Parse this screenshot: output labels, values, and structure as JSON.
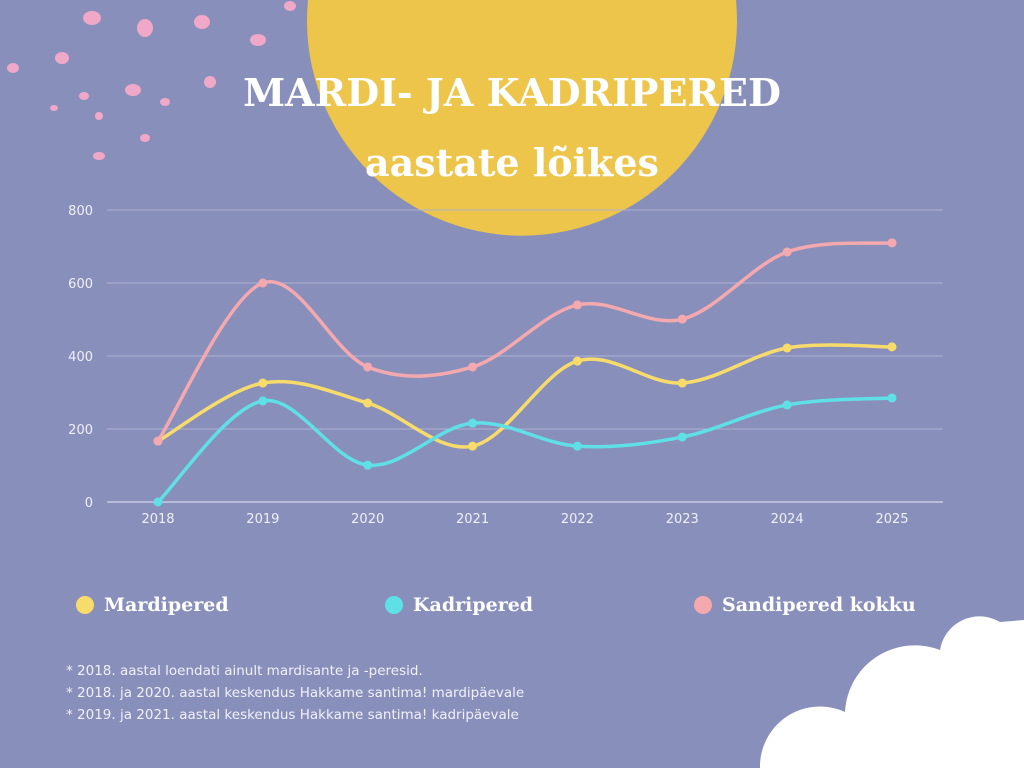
{
  "title_line1": "MARDI- JA KADRIPERED",
  "title_line2": "aastate lõikes",
  "colors": {
    "background": "#898fbb",
    "sun": "#ecc54a",
    "dots": "#f0a8c8",
    "cloud": "#ffffff",
    "grid": "#aeb2d2"
  },
  "chart_data": {
    "type": "line",
    "smooth": true,
    "categories": [
      "2018",
      "2019",
      "2020",
      "2021",
      "2022",
      "2023",
      "2024",
      "2025"
    ],
    "ylim": [
      0,
      800
    ],
    "yticks": [
      0,
      200,
      400,
      600,
      800
    ],
    "grid": true,
    "legend_position": "bottom",
    "series": [
      {
        "name": "Mardipered",
        "color": "#f7dc6b",
        "values": [
          167,
          326,
          271,
          153,
          386,
          326,
          422,
          425
        ]
      },
      {
        "name": "Kadripered",
        "color": "#5fe0e6",
        "values": [
          0,
          277,
          101,
          216,
          153,
          178,
          266,
          285
        ]
      },
      {
        "name": "Sandipered kokku",
        "color": "#f4a9ae",
        "values": [
          167,
          600,
          370,
          370,
          540,
          501,
          685,
          710
        ]
      }
    ]
  },
  "notes": [
    "* 2018. aastal loendati ainult mardisante ja -peresid.",
    "* 2018. ja 2020. aastal keskendus Hakkame santima! mardipäevale",
    "* 2019. ja 2021. aastal keskendus Hakkame santima! kadripäevale"
  ]
}
